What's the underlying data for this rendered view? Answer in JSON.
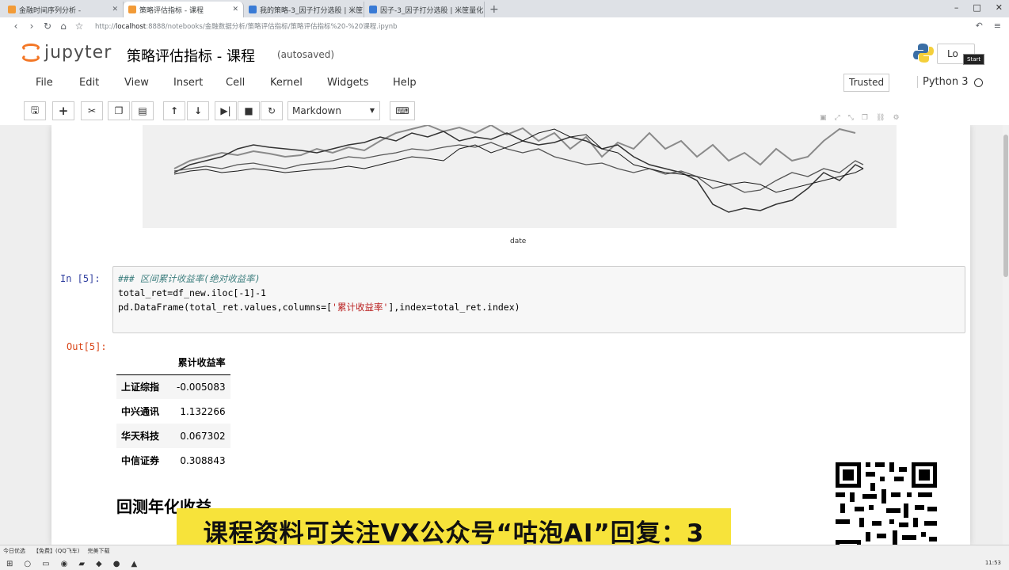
{
  "browser": {
    "tabs": [
      {
        "label": "金融时间序列分析 -"
      },
      {
        "label": "策略评估指标 - 课程"
      },
      {
        "label": "我的策略-3_因子打分选股 | 米筐"
      },
      {
        "label": "因子-3_因子打分选股 | 米筐量化"
      }
    ],
    "new_tab": "+",
    "window_controls": {
      "minimize": "–",
      "maximize": "□",
      "close": "✕"
    },
    "url_prefix": "http://",
    "url_host": "localhost",
    "url_rest": ":8888/notebooks/金融数据分析/策略评估指标/策略评估指标%20-%20课程.ipynb"
  },
  "header": {
    "logo_text": "jupyter",
    "notebook_title": "策略评估指标 - 课程",
    "save_status": "(autosaved)",
    "logout_label": "Lo",
    "start_tooltip": "Start"
  },
  "menubar": {
    "items": [
      "File",
      "Edit",
      "View",
      "Insert",
      "Cell",
      "Kernel",
      "Widgets",
      "Help"
    ],
    "trusted": "Trusted",
    "kernel_name": "Python 3"
  },
  "toolbar": {
    "cell_type": "Markdown",
    "icons": [
      "save-icon",
      "plus-icon",
      "cut-icon",
      "copy-icon",
      "paste-icon",
      "arrow-up-icon",
      "arrow-down-icon",
      "run-icon",
      "stop-icon",
      "restart-icon",
      "keyboard-icon"
    ]
  },
  "plot": {
    "ylabel": "",
    "xlabel": "date"
  },
  "input_cell": {
    "prompt": "In  [5]:",
    "lines": {
      "l1": "### 区间累计收益率(绝对收益率)",
      "l2": "total_ret=df_new.iloc[-1]-1",
      "l3_a": "pd.DataFrame(total_ret.values,columns=[",
      "l3_str": "'累计收益率'",
      "l3_b": "],index=total_ret.index)"
    }
  },
  "output_cell": {
    "prompt": "Out[5]:",
    "column_header": "累计收益率",
    "rows": [
      {
        "index": "上证综指",
        "value": "-0.005083"
      },
      {
        "index": "中兴通讯",
        "value": "1.132266"
      },
      {
        "index": "华天科技",
        "value": "0.067302"
      },
      {
        "index": "中信证券",
        "value": "0.308843"
      }
    ]
  },
  "section_heading": "回测年化收益",
  "banner_text": "课程资料可关注VX公众号“咕泡AI”回复：3",
  "taskbar": {
    "row1": [
      "今日优选",
      "【免费】(QQ飞车)",
      "完美下载"
    ],
    "clock": "11:53"
  },
  "colors": {
    "jupyter_orange": "#f37726",
    "banner_yellow": "#f7e33a",
    "prompt_in": "#303f9f",
    "prompt_out": "#d84315"
  }
}
